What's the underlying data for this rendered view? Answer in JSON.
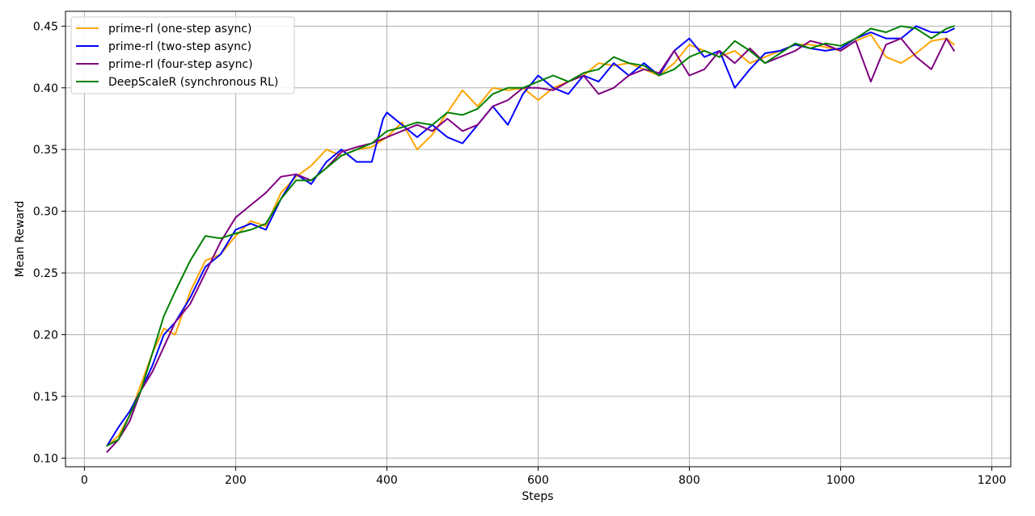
{
  "chart_data": {
    "type": "line",
    "title": "",
    "xlabel": "Steps",
    "ylabel": "Mean Reward",
    "xlim": [
      -25,
      1225
    ],
    "ylim": [
      0.093,
      0.462
    ],
    "x_ticks": [
      0,
      200,
      400,
      600,
      800,
      1000,
      1200
    ],
    "x_tick_labels": [
      "0",
      "200",
      "400",
      "600",
      "800",
      "1000",
      "1200"
    ],
    "y_ticks": [
      0.1,
      0.15,
      0.2,
      0.25,
      0.3,
      0.35,
      0.4,
      0.45
    ],
    "y_tick_labels": [
      "0.10",
      "0.15",
      "0.20",
      "0.25",
      "0.30",
      "0.35",
      "0.40",
      "0.45"
    ],
    "grid": true,
    "legend_position": "top-left",
    "series": [
      {
        "name": "prime-rl (one-step async)",
        "color": "#ffa500",
        "x": [
          30,
          45,
          60,
          75,
          90,
          105,
          120,
          140,
          160,
          180,
          200,
          220,
          240,
          260,
          280,
          300,
          320,
          340,
          360,
          380,
          400,
          420,
          440,
          460,
          480,
          500,
          520,
          540,
          560,
          580,
          600,
          620,
          640,
          660,
          680,
          700,
          720,
          740,
          760,
          780,
          800,
          820,
          840,
          860,
          880,
          900,
          920,
          940,
          960,
          980,
          1000,
          1020,
          1040,
          1060,
          1080,
          1100,
          1120,
          1140,
          1150
        ],
        "y": [
          0.11,
          0.118,
          0.135,
          0.16,
          0.185,
          0.205,
          0.2,
          0.235,
          0.26,
          0.265,
          0.28,
          0.292,
          0.288,
          0.315,
          0.328,
          0.337,
          0.35,
          0.345,
          0.35,
          0.352,
          0.36,
          0.372,
          0.35,
          0.362,
          0.38,
          0.398,
          0.385,
          0.4,
          0.398,
          0.4,
          0.39,
          0.4,
          0.405,
          0.41,
          0.42,
          0.418,
          0.42,
          0.415,
          0.41,
          0.42,
          0.435,
          0.43,
          0.425,
          0.43,
          0.42,
          0.425,
          0.43,
          0.435,
          0.435,
          0.433,
          0.43,
          0.438,
          0.443,
          0.425,
          0.42,
          0.428,
          0.438,
          0.44,
          0.435
        ]
      },
      {
        "name": "prime-rl (two-step async)",
        "color": "#0000ff",
        "x": [
          30,
          45,
          60,
          75,
          90,
          105,
          120,
          140,
          160,
          180,
          200,
          220,
          240,
          260,
          280,
          300,
          320,
          340,
          360,
          380,
          395,
          400,
          420,
          440,
          460,
          480,
          500,
          520,
          540,
          560,
          580,
          600,
          620,
          640,
          660,
          680,
          700,
          720,
          740,
          760,
          780,
          800,
          820,
          840,
          860,
          880,
          900,
          920,
          940,
          960,
          980,
          1000,
          1020,
          1040,
          1060,
          1080,
          1100,
          1120,
          1140,
          1150
        ],
        "y": [
          0.11,
          0.125,
          0.138,
          0.155,
          0.175,
          0.2,
          0.21,
          0.23,
          0.255,
          0.265,
          0.285,
          0.29,
          0.285,
          0.31,
          0.33,
          0.322,
          0.34,
          0.35,
          0.34,
          0.34,
          0.375,
          0.38,
          0.37,
          0.36,
          0.37,
          0.36,
          0.355,
          0.37,
          0.385,
          0.37,
          0.395,
          0.41,
          0.4,
          0.395,
          0.41,
          0.405,
          0.42,
          0.41,
          0.42,
          0.41,
          0.43,
          0.44,
          0.425,
          0.43,
          0.4,
          0.415,
          0.428,
          0.43,
          0.435,
          0.432,
          0.43,
          0.432,
          0.44,
          0.445,
          0.44,
          0.44,
          0.45,
          0.445,
          0.445,
          0.448
        ]
      },
      {
        "name": "prime-rl (four-step async)",
        "color": "#800080",
        "x": [
          30,
          45,
          60,
          75,
          90,
          105,
          120,
          140,
          160,
          180,
          200,
          220,
          240,
          260,
          280,
          300,
          320,
          340,
          360,
          380,
          400,
          420,
          440,
          460,
          480,
          500,
          520,
          540,
          560,
          580,
          600,
          620,
          640,
          660,
          680,
          700,
          720,
          740,
          760,
          780,
          800,
          820,
          840,
          860,
          880,
          900,
          920,
          940,
          960,
          980,
          1000,
          1020,
          1040,
          1060,
          1080,
          1100,
          1120,
          1140,
          1150
        ],
        "y": [
          0.105,
          0.115,
          0.13,
          0.155,
          0.17,
          0.19,
          0.21,
          0.225,
          0.25,
          0.275,
          0.295,
          0.305,
          0.315,
          0.328,
          0.33,
          0.325,
          0.335,
          0.348,
          0.352,
          0.355,
          0.36,
          0.365,
          0.37,
          0.365,
          0.375,
          0.365,
          0.37,
          0.385,
          0.39,
          0.4,
          0.4,
          0.398,
          0.405,
          0.41,
          0.395,
          0.4,
          0.41,
          0.415,
          0.412,
          0.43,
          0.41,
          0.415,
          0.43,
          0.42,
          0.432,
          0.42,
          0.425,
          0.43,
          0.438,
          0.435,
          0.43,
          0.438,
          0.405,
          0.435,
          0.44,
          0.425,
          0.415,
          0.44,
          0.43
        ]
      },
      {
        "name": "DeepScaleR (synchronous RL)",
        "color": "#008000",
        "x": [
          30,
          45,
          60,
          75,
          90,
          105,
          120,
          140,
          160,
          180,
          200,
          220,
          240,
          260,
          280,
          300,
          320,
          340,
          360,
          380,
          400,
          420,
          440,
          460,
          480,
          500,
          520,
          540,
          560,
          580,
          600,
          620,
          640,
          660,
          680,
          700,
          720,
          740,
          760,
          780,
          800,
          820,
          840,
          860,
          880,
          900,
          920,
          940,
          960,
          980,
          1000,
          1020,
          1040,
          1060,
          1080,
          1100,
          1120,
          1140,
          1150
        ],
        "y": [
          0.11,
          0.115,
          0.135,
          0.155,
          0.185,
          0.215,
          0.235,
          0.26,
          0.28,
          0.278,
          0.282,
          0.285,
          0.29,
          0.31,
          0.325,
          0.325,
          0.335,
          0.345,
          0.35,
          0.355,
          0.365,
          0.368,
          0.372,
          0.37,
          0.38,
          0.378,
          0.383,
          0.395,
          0.4,
          0.4,
          0.405,
          0.41,
          0.405,
          0.412,
          0.415,
          0.425,
          0.42,
          0.418,
          0.41,
          0.415,
          0.425,
          0.43,
          0.425,
          0.438,
          0.43,
          0.42,
          0.428,
          0.436,
          0.432,
          0.436,
          0.434,
          0.44,
          0.448,
          0.445,
          0.45,
          0.448,
          0.44,
          0.448,
          0.45
        ]
      }
    ]
  }
}
